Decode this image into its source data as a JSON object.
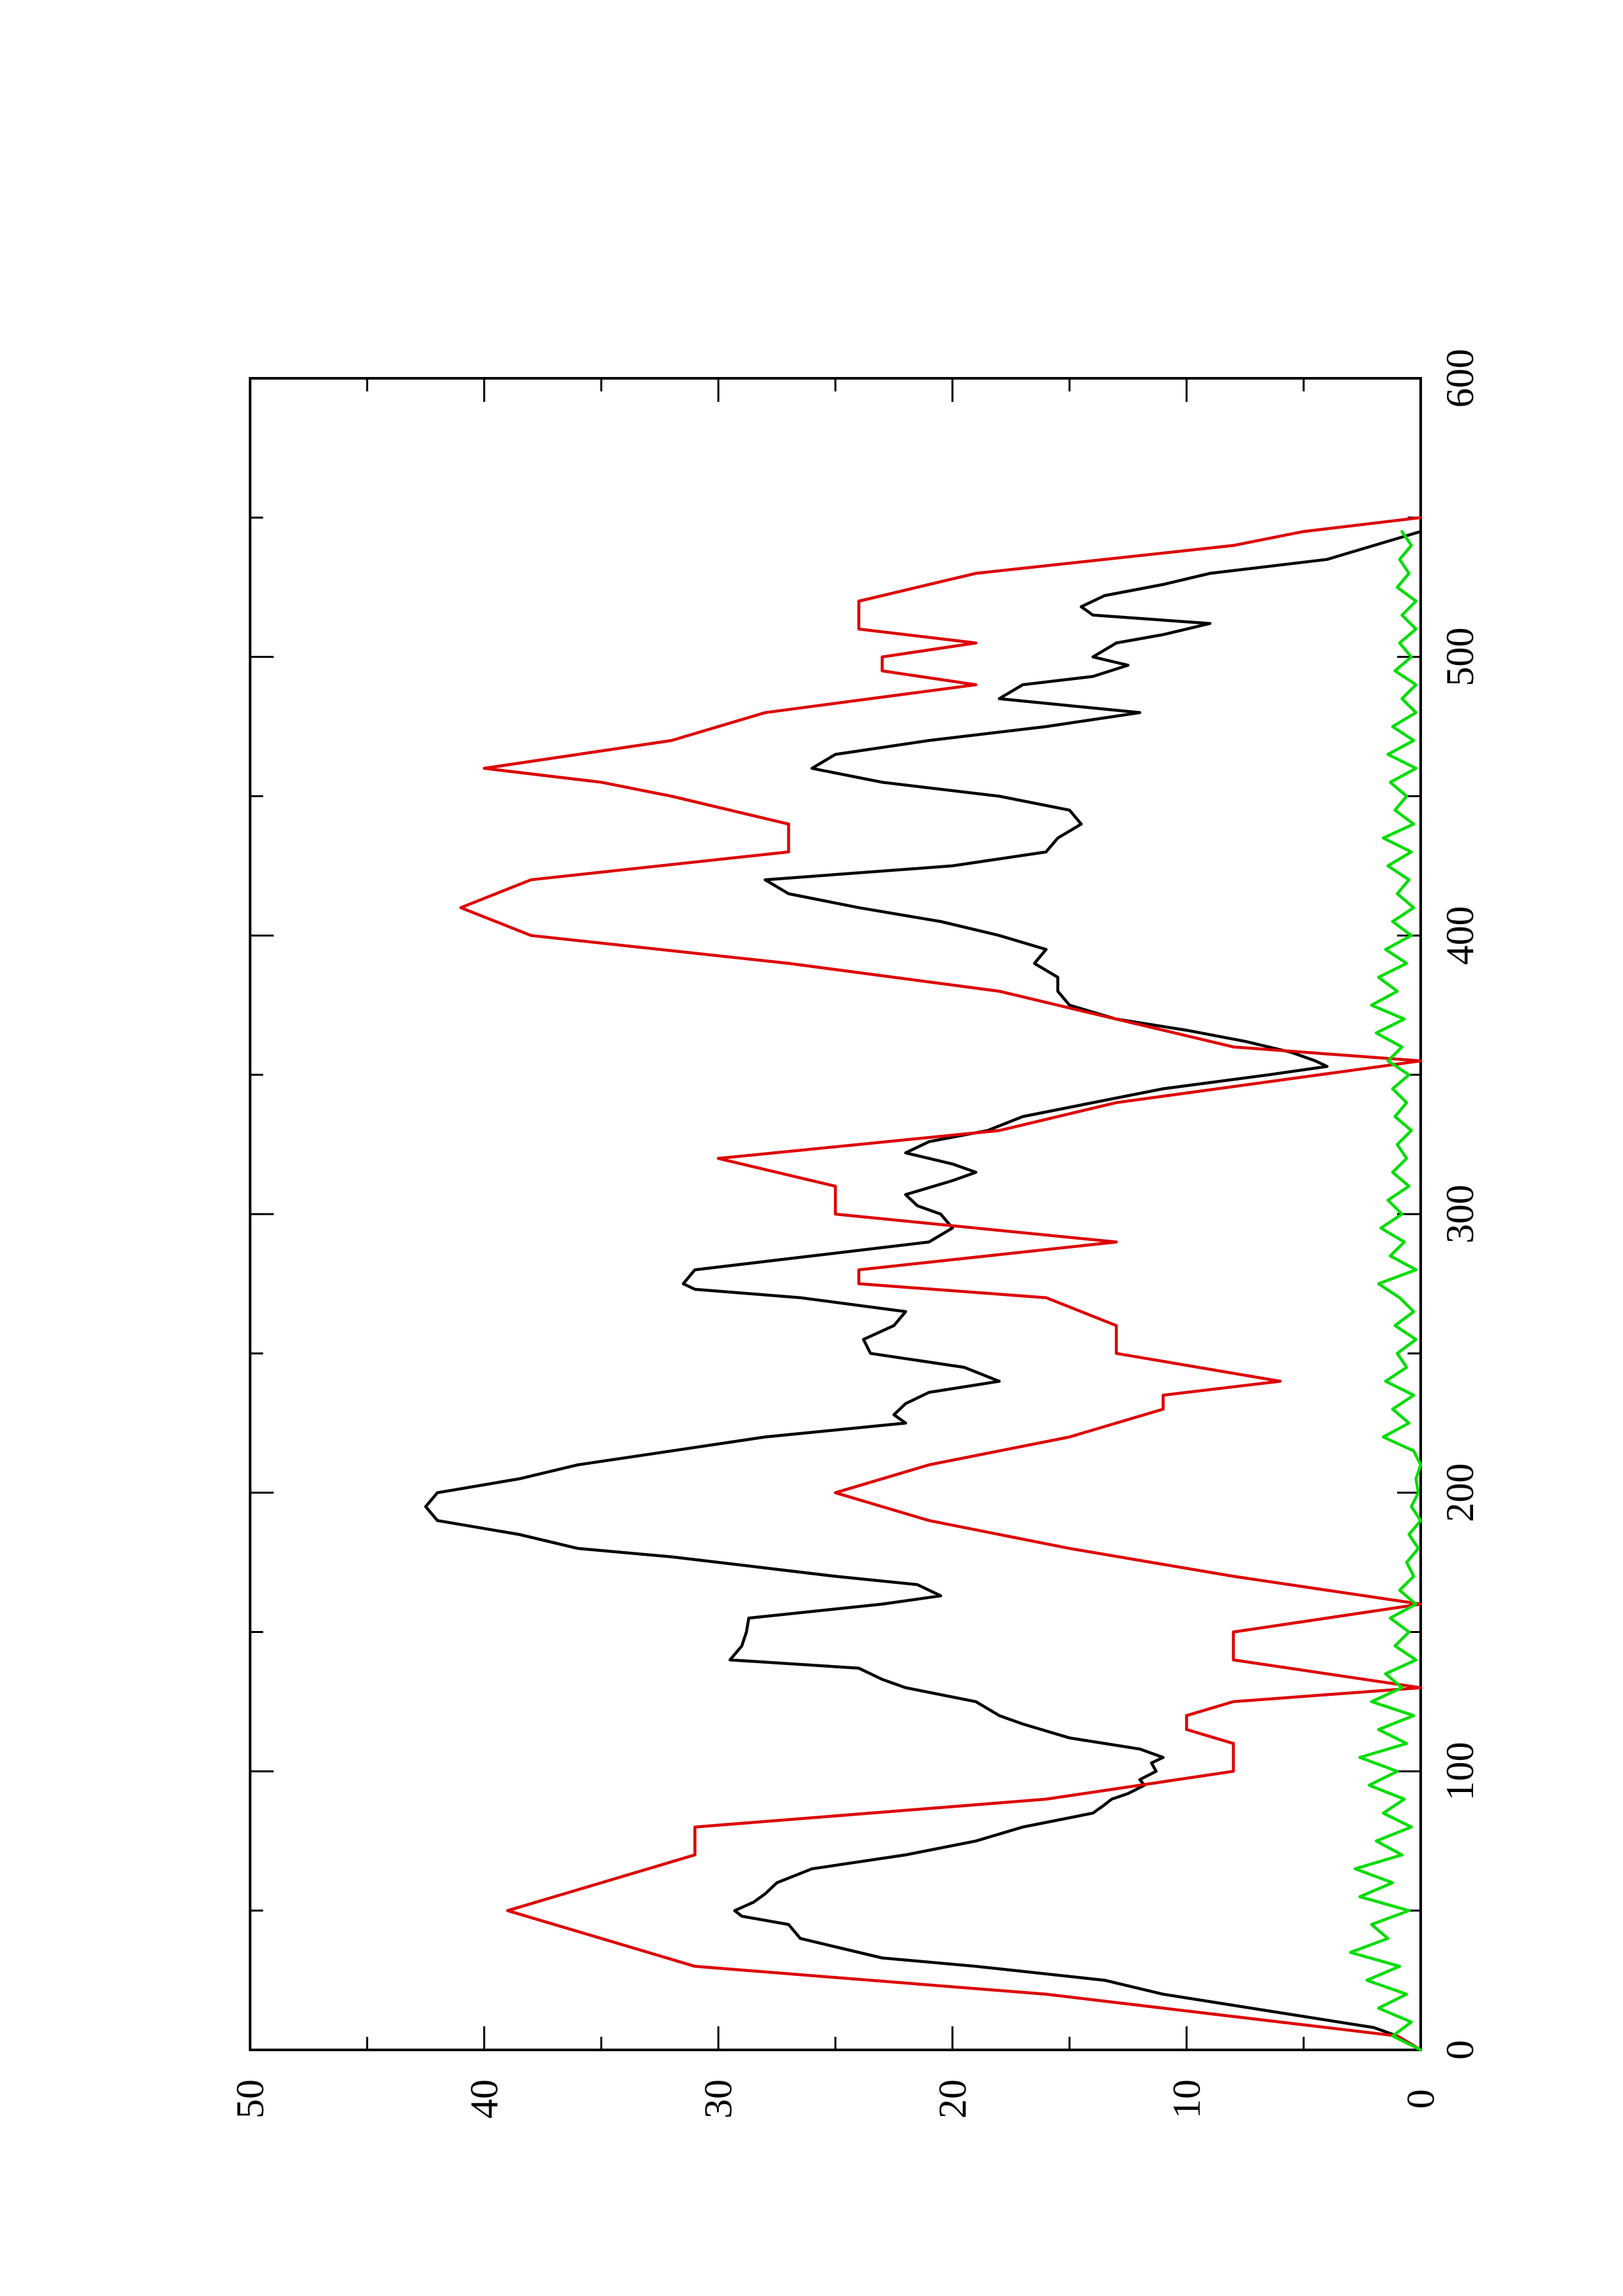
{
  "chart_data": {
    "type": "line",
    "title": "",
    "xlabel": "",
    "ylabel": "",
    "orientation": "rotated 90 degrees counter-clockwise (x axis runs up the page)",
    "xlim": [
      0,
      600
    ],
    "ylim": [
      0,
      50
    ],
    "x_ticks": [
      {
        "value": 0,
        "label": "0"
      },
      {
        "value": 100,
        "label": "100"
      },
      {
        "value": 200,
        "label": "200"
      },
      {
        "value": 300,
        "label": "300"
      },
      {
        "value": 400,
        "label": "400"
      },
      {
        "value": 500,
        "label": "500"
      },
      {
        "value": 600,
        "label": "600"
      }
    ],
    "x_minor_ticks": [
      50,
      150,
      250,
      350,
      450,
      550
    ],
    "y_ticks": [
      {
        "value": 0,
        "label": "0"
      },
      {
        "value": 10,
        "label": "10"
      },
      {
        "value": 20,
        "label": "20"
      },
      {
        "value": 30,
        "label": "30"
      },
      {
        "value": 40,
        "label": "40"
      },
      {
        "value": 50,
        "label": "50"
      }
    ],
    "y_minor_ticks": [
      5,
      15,
      25,
      35,
      45
    ],
    "grid": false,
    "legend": "none",
    "series": [
      {
        "color": "#000000",
        "points": [
          [
            0,
            0
          ],
          [
            5,
            1
          ],
          [
            8,
            2
          ],
          [
            12,
            5
          ],
          [
            16,
            8
          ],
          [
            20,
            11
          ],
          [
            25,
            13.5
          ],
          [
            30,
            19
          ],
          [
            33,
            23
          ],
          [
            37,
            25
          ],
          [
            40,
            26.5
          ],
          [
            45,
            27
          ],
          [
            48,
            29
          ],
          [
            50,
            29.3
          ],
          [
            53,
            28.5
          ],
          [
            56,
            28
          ],
          [
            60,
            27.5
          ],
          [
            65,
            26
          ],
          [
            70,
            22
          ],
          [
            75,
            19
          ],
          [
            80,
            17
          ],
          [
            85,
            14
          ],
          [
            88,
            13.5
          ],
          [
            90,
            13.2
          ],
          [
            92,
            12.5
          ],
          [
            95,
            11.8
          ],
          [
            97,
            12
          ],
          [
            100,
            11.3
          ],
          [
            103,
            11.5
          ],
          [
            105,
            11
          ],
          [
            108,
            12
          ],
          [
            112,
            15
          ],
          [
            117,
            17
          ],
          [
            120,
            18
          ],
          [
            125,
            19
          ],
          [
            130,
            22
          ],
          [
            133,
            23
          ],
          [
            137,
            24
          ],
          [
            140,
            29.5
          ],
          [
            145,
            29
          ],
          [
            150,
            28.8
          ],
          [
            155,
            28.7
          ],
          [
            160,
            23
          ],
          [
            163,
            20.5
          ],
          [
            167,
            21.5
          ],
          [
            170,
            25
          ],
          [
            173,
            28
          ],
          [
            177,
            32
          ],
          [
            180,
            36
          ],
          [
            185,
            38.5
          ],
          [
            190,
            42
          ],
          [
            195,
            42.5
          ],
          [
            200,
            42
          ],
          [
            205,
            38.5
          ],
          [
            210,
            36
          ],
          [
            215,
            32
          ],
          [
            220,
            28
          ],
          [
            225,
            22
          ],
          [
            228,
            22.5
          ],
          [
            232,
            22
          ],
          [
            236,
            21
          ],
          [
            240,
            18
          ],
          [
            245,
            19.5
          ],
          [
            250,
            23.5
          ],
          [
            255,
            23.8
          ],
          [
            260,
            22.5
          ],
          [
            265,
            22
          ],
          [
            270,
            26.5
          ],
          [
            273,
            31
          ],
          [
            275,
            31.5
          ],
          [
            280,
            31
          ],
          [
            285,
            26
          ],
          [
            290,
            21
          ],
          [
            295,
            20
          ],
          [
            300,
            20.5
          ],
          [
            303,
            21.5
          ],
          [
            307,
            22
          ],
          [
            312,
            20
          ],
          [
            315,
            19
          ],
          [
            318,
            20
          ],
          [
            322,
            22
          ],
          [
            326,
            21
          ],
          [
            330,
            18.5
          ],
          [
            335,
            17
          ],
          [
            340,
            14
          ],
          [
            345,
            11
          ],
          [
            350,
            6.5
          ],
          [
            353,
            4
          ],
          [
            355,
            4.5
          ],
          [
            358,
            5.5
          ],
          [
            362,
            7.5
          ],
          [
            366,
            10
          ],
          [
            370,
            13
          ],
          [
            375,
            15
          ],
          [
            380,
            15.5
          ],
          [
            385,
            15.5
          ],
          [
            390,
            16.5
          ],
          [
            395,
            16
          ],
          [
            400,
            18
          ],
          [
            405,
            20.5
          ],
          [
            410,
            24
          ],
          [
            415,
            27
          ],
          [
            420,
            28
          ],
          [
            425,
            20
          ],
          [
            430,
            16
          ],
          [
            435,
            15.5
          ],
          [
            440,
            14.5
          ],
          [
            445,
            15
          ],
          [
            450,
            18
          ],
          [
            455,
            23
          ],
          [
            460,
            26
          ],
          [
            465,
            25
          ],
          [
            470,
            21
          ],
          [
            475,
            16
          ],
          [
            480,
            12
          ],
          [
            485,
            18
          ],
          [
            490,
            17
          ],
          [
            493,
            14
          ],
          [
            497,
            12.5
          ],
          [
            500,
            14
          ],
          [
            505,
            13
          ],
          [
            508,
            11
          ],
          [
            512,
            9
          ],
          [
            515,
            14
          ],
          [
            518,
            14.5
          ],
          [
            522,
            13.5
          ],
          [
            526,
            11
          ],
          [
            530,
            9
          ],
          [
            535,
            4
          ],
          [
            540,
            2
          ],
          [
            545,
            0
          ]
        ]
      },
      {
        "color": "#dd0000",
        "points": [
          [
            0,
            0
          ],
          [
            5,
            1
          ],
          [
            20,
            16
          ],
          [
            30,
            31
          ],
          [
            40,
            35
          ],
          [
            50,
            39
          ],
          [
            60,
            35
          ],
          [
            70,
            31
          ],
          [
            80,
            31
          ],
          [
            90,
            16
          ],
          [
            100,
            8
          ],
          [
            110,
            8
          ],
          [
            115,
            10
          ],
          [
            120,
            10
          ],
          [
            125,
            8
          ],
          [
            130,
            0
          ],
          [
            140,
            8
          ],
          [
            150,
            8
          ],
          [
            160,
            0
          ],
          [
            170,
            8
          ],
          [
            180,
            15
          ],
          [
            190,
            21
          ],
          [
            200,
            25
          ],
          [
            210,
            21
          ],
          [
            220,
            15
          ],
          [
            230,
            11
          ],
          [
            235,
            11
          ],
          [
            240,
            6
          ],
          [
            250,
            13
          ],
          [
            260,
            13
          ],
          [
            270,
            16
          ],
          [
            275,
            24
          ],
          [
            280,
            24
          ],
          [
            290,
            13
          ],
          [
            300,
            25
          ],
          [
            310,
            25
          ],
          [
            320,
            30
          ],
          [
            330,
            18
          ],
          [
            340,
            13
          ],
          [
            355,
            0
          ],
          [
            360,
            8
          ],
          [
            370,
            13
          ],
          [
            380,
            18
          ],
          [
            390,
            27
          ],
          [
            400,
            38
          ],
          [
            410,
            41
          ],
          [
            420,
            38
          ],
          [
            430,
            27
          ],
          [
            440,
            27
          ],
          [
            450,
            32
          ],
          [
            455,
            35
          ],
          [
            460,
            40
          ],
          [
            470,
            32
          ],
          [
            480,
            28
          ],
          [
            490,
            19
          ],
          [
            495,
            23
          ],
          [
            500,
            23
          ],
          [
            505,
            19
          ],
          [
            510,
            24
          ],
          [
            520,
            24
          ],
          [
            530,
            19
          ],
          [
            540,
            8
          ],
          [
            545,
            5
          ],
          [
            550,
            0
          ]
        ]
      },
      {
        "color": "#00dd00",
        "points": [
          [
            0,
            0
          ],
          [
            5,
            1.2
          ],
          [
            10,
            0.4
          ],
          [
            15,
            1.8
          ],
          [
            20,
            0.6
          ],
          [
            25,
            2.3
          ],
          [
            30,
            0.9
          ],
          [
            35,
            3.0
          ],
          [
            40,
            1.4
          ],
          [
            45,
            2.1
          ],
          [
            50,
            0.5
          ],
          [
            55,
            2.6
          ],
          [
            60,
            1.2
          ],
          [
            65,
            2.8
          ],
          [
            70,
            0.8
          ],
          [
            75,
            1.9
          ],
          [
            80,
            0.4
          ],
          [
            85,
            1.6
          ],
          [
            90,
            0.7
          ],
          [
            95,
            2.2
          ],
          [
            100,
            1.0
          ],
          [
            105,
            2.6
          ],
          [
            110,
            0.6
          ],
          [
            115,
            1.8
          ],
          [
            120,
            0.3
          ],
          [
            125,
            2.1
          ],
          [
            130,
            0.8
          ],
          [
            135,
            1.5
          ],
          [
            140,
            0.2
          ],
          [
            145,
            1.1
          ],
          [
            150,
            0.5
          ],
          [
            155,
            1.3
          ],
          [
            160,
            0.2
          ],
          [
            165,
            0.9
          ],
          [
            170,
            0.3
          ],
          [
            175,
            0.6
          ],
          [
            180,
            0.1
          ],
          [
            185,
            0.5
          ],
          [
            190,
            0
          ],
          [
            195,
            0.4
          ],
          [
            200,
            0.1
          ],
          [
            205,
            0.2
          ],
          [
            210,
            0
          ],
          [
            215,
            0.3
          ],
          [
            220,
            1.6
          ],
          [
            225,
            0.5
          ],
          [
            230,
            1.2
          ],
          [
            235,
            0.3
          ],
          [
            240,
            1.5
          ],
          [
            245,
            0.6
          ],
          [
            250,
            1.0
          ],
          [
            255,
            0.2
          ],
          [
            260,
            1.1
          ],
          [
            265,
            0.3
          ],
          [
            270,
            0.9
          ],
          [
            275,
            1.8
          ],
          [
            280,
            0.2
          ],
          [
            285,
            1.3
          ],
          [
            290,
            0.7
          ],
          [
            295,
            1.7
          ],
          [
            300,
            0.8
          ],
          [
            305,
            1.4
          ],
          [
            310,
            0.5
          ],
          [
            315,
            1.2
          ],
          [
            320,
            0.6
          ],
          [
            325,
            1.0
          ],
          [
            330,
            0.4
          ],
          [
            335,
            1.1
          ],
          [
            340,
            0.6
          ],
          [
            345,
            1.2
          ],
          [
            350,
            0.5
          ],
          [
            355,
            1.4
          ],
          [
            360,
            0.8
          ],
          [
            365,
            1.9
          ],
          [
            370,
            0.7
          ],
          [
            375,
            2.1
          ],
          [
            380,
            1.0
          ],
          [
            385,
            1.8
          ],
          [
            390,
            0.6
          ],
          [
            395,
            1.5
          ],
          [
            400,
            0.4
          ],
          [
            405,
            1.2
          ],
          [
            410,
            0.3
          ],
          [
            415,
            1.0
          ],
          [
            420,
            0.5
          ],
          [
            425,
            1.4
          ],
          [
            430,
            0.4
          ],
          [
            435,
            1.6
          ],
          [
            440,
            0.3
          ],
          [
            445,
            1.1
          ],
          [
            450,
            0.6
          ],
          [
            455,
            1.3
          ],
          [
            460,
            0.2
          ],
          [
            465,
            1.4
          ],
          [
            470,
            0.3
          ],
          [
            475,
            1.2
          ],
          [
            480,
            0.2
          ],
          [
            485,
            0.8
          ],
          [
            490,
            0.2
          ],
          [
            495,
            1.1
          ],
          [
            500,
            0.4
          ],
          [
            505,
            0.9
          ],
          [
            510,
            0.2
          ],
          [
            515,
            0.8
          ],
          [
            520,
            0.2
          ],
          [
            525,
            1.0
          ],
          [
            530,
            0.5
          ],
          [
            535,
            0.9
          ],
          [
            540,
            0.4
          ],
          [
            545,
            0.8
          ]
        ]
      }
    ]
  }
}
